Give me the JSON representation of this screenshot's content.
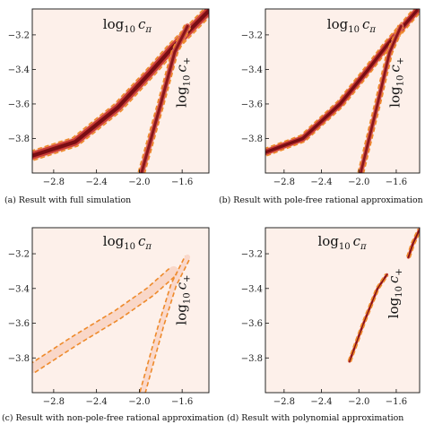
{
  "chart_data": [
    {
      "type": "heatmap",
      "title": "",
      "caption": "(a) Result with full simulation",
      "xlabel": "",
      "ylabel": "",
      "xlim": [
        -3.0,
        -1.35
      ],
      "ylim": [
        -4.0,
        -3.05
      ],
      "xticks": [
        "−2.8",
        "−2.4",
        "−2.0",
        "−1.6"
      ],
      "yticks": [
        "−3.2",
        "−3.4",
        "−3.6",
        "−3.8"
      ],
      "annotations": [
        {
          "base": "log",
          "sub": "10",
          "var": "c",
          "varsub": "π",
          "orient": "horizontal"
        },
        {
          "base": "log",
          "sub": "10",
          "var": "c",
          "varsub": "+",
          "orient": "vertical"
        }
      ],
      "bands": [
        {
          "id": "cpi",
          "inner_width": 0.045,
          "outer_width": 0.09,
          "intensity": 1.0,
          "points": [
            [
              -3.0,
              -3.9
            ],
            [
              -2.6,
              -3.82
            ],
            [
              -2.2,
              -3.62
            ],
            [
              -1.9,
              -3.42
            ],
            [
              -1.7,
              -3.28
            ],
            [
              -1.35,
              -3.06
            ]
          ]
        },
        {
          "id": "cplus",
          "inner_width": 0.03,
          "outer_width": 0.06,
          "intensity": 0.85,
          "points": [
            [
              -1.98,
              -4.0
            ],
            [
              -1.8,
              -3.6
            ],
            [
              -1.67,
              -3.3
            ],
            [
              -1.55,
              -3.15
            ]
          ]
        }
      ]
    },
    {
      "type": "heatmap",
      "title": "",
      "caption": "(b) Result with pole-free rational approximation",
      "xlabel": "",
      "ylabel": "",
      "xlim": [
        -3.0,
        -1.35
      ],
      "ylim": [
        -4.0,
        -3.05
      ],
      "xticks": [
        "−2.8",
        "−2.4",
        "−2.0",
        "−1.6"
      ],
      "yticks": [
        "−3.2",
        "−3.4",
        "−3.6",
        "−3.8"
      ],
      "annotations": [
        {
          "base": "log",
          "sub": "10",
          "var": "c",
          "varsub": "π",
          "orient": "horizontal"
        },
        {
          "base": "log",
          "sub": "10",
          "var": "c",
          "varsub": "+",
          "orient": "vertical"
        }
      ],
      "bands": [
        {
          "id": "cpi",
          "inner_width": 0.04,
          "outer_width": 0.08,
          "intensity": 1.0,
          "points": [
            [
              -3.0,
              -3.88
            ],
            [
              -2.6,
              -3.8
            ],
            [
              -2.2,
              -3.6
            ],
            [
              -1.9,
              -3.4
            ],
            [
              -1.7,
              -3.26
            ],
            [
              -1.38,
              -3.06
            ]
          ]
        },
        {
          "id": "cplus",
          "inner_width": 0.03,
          "outer_width": 0.06,
          "intensity": 0.85,
          "points": [
            [
              -1.98,
              -4.0
            ],
            [
              -1.8,
              -3.6
            ],
            [
              -1.67,
              -3.3
            ],
            [
              -1.55,
              -3.15
            ]
          ]
        }
      ]
    },
    {
      "type": "heatmap",
      "title": "",
      "caption": "(c) Result with non-pole-free rational approximation",
      "xlabel": "",
      "ylabel": "",
      "xlim": [
        -3.0,
        -1.35
      ],
      "ylim": [
        -4.0,
        -3.05
      ],
      "xticks": [
        "−2.8",
        "−2.4",
        "−2.0",
        "−1.6"
      ],
      "yticks": [
        "−3.2",
        "−3.4",
        "−3.6",
        "−3.8"
      ],
      "annotations": [
        {
          "base": "log",
          "sub": "10",
          "var": "c",
          "varsub": "π",
          "orient": "horizontal"
        },
        {
          "base": "log",
          "sub": "10",
          "var": "c",
          "varsub": "+",
          "orient": "vertical"
        }
      ],
      "bands": [
        {
          "id": "cpi",
          "inner_width": 0.0,
          "outer_width": 0.09,
          "intensity": 0.2,
          "points": [
            [
              -3.0,
              -3.86
            ],
            [
              -2.6,
              -3.7
            ],
            [
              -2.2,
              -3.55
            ],
            [
              -1.9,
              -3.42
            ],
            [
              -1.68,
              -3.3
            ]
          ]
        },
        {
          "id": "cplus",
          "inner_width": 0.0,
          "outer_width": 0.05,
          "intensity": 0.15,
          "points": [
            [
              -1.97,
              -4.0
            ],
            [
              -1.8,
              -3.62
            ],
            [
              -1.68,
              -3.38
            ],
            [
              -1.55,
              -3.22
            ]
          ]
        }
      ]
    },
    {
      "type": "heatmap",
      "title": "",
      "caption": "(d) Result with polynomial approximation",
      "xlabel": "",
      "ylabel": "",
      "xlim": [
        -3.0,
        -1.35
      ],
      "ylim": [
        -4.0,
        -3.05
      ],
      "xticks": [
        "−2.8",
        "−2.4",
        "−2.0",
        "−1.6"
      ],
      "yticks": [
        "−3.2",
        "−3.4",
        "−3.6",
        "−3.8"
      ],
      "annotations": [
        {
          "base": "log",
          "sub": "10",
          "var": "c",
          "varsub": "π",
          "orient": "horizontal"
        },
        {
          "base": "log",
          "sub": "10",
          "var": "c",
          "varsub": "+",
          "orient": "vertical"
        }
      ],
      "bands": [
        {
          "id": "cplus",
          "inner_width": 0.018,
          "outer_width": 0.03,
          "intensity": 0.95,
          "points": [
            [
              -2.1,
              -3.82
            ],
            [
              -1.95,
              -3.6
            ],
            [
              -1.8,
              -3.4
            ],
            [
              -1.7,
              -3.32
            ]
          ]
        },
        {
          "id": "corner",
          "inner_width": 0.02,
          "outer_width": 0.035,
          "intensity": 0.95,
          "points": [
            [
              -1.47,
              -3.22
            ],
            [
              -1.42,
              -3.14
            ],
            [
              -1.35,
              -3.06
            ]
          ]
        }
      ]
    }
  ],
  "colors": {
    "background": "#fdf0ea",
    "contour": "#ee8a2b",
    "band_dark": "#7a0d14",
    "band_mid": "#c8302a",
    "band_light": "#f5b8a0",
    "tick_label": "#222222"
  }
}
